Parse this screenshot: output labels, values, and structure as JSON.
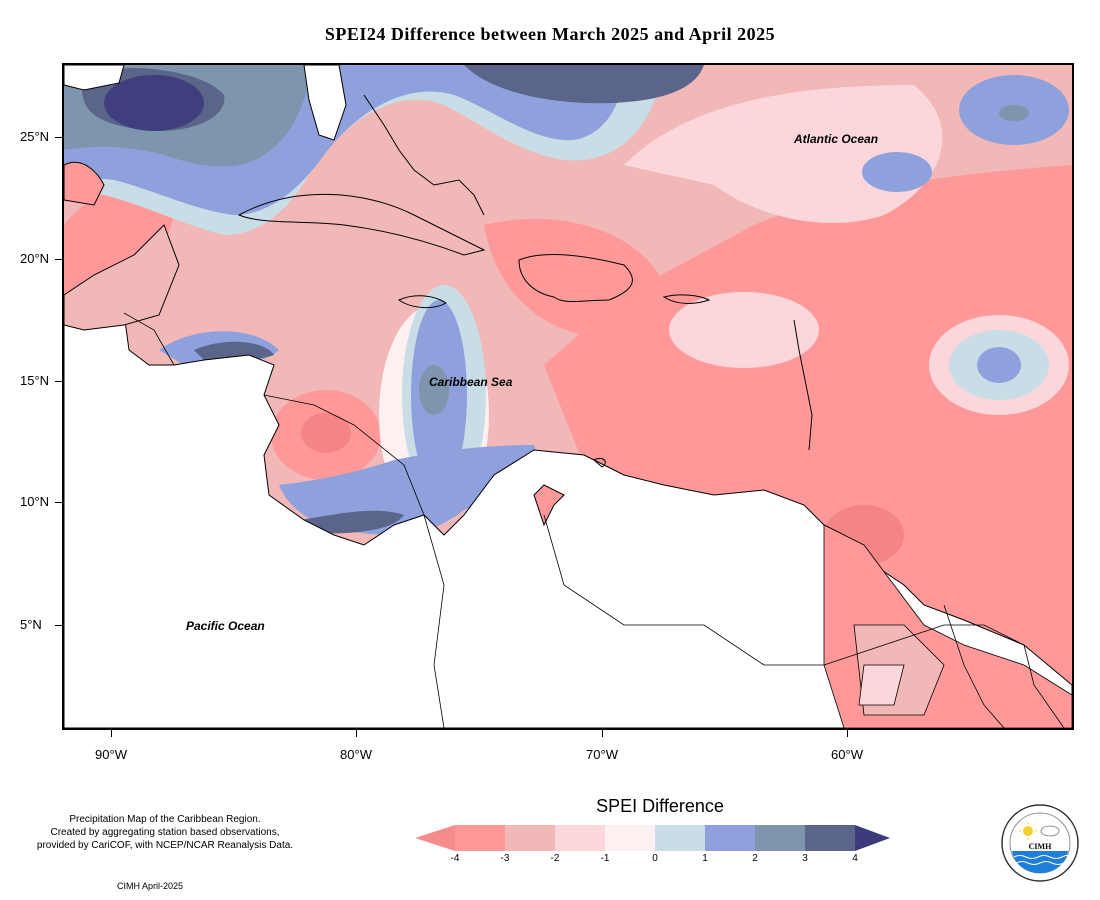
{
  "title": "SPEI24 Difference between March 2025 and April 2025",
  "labels": {
    "atlantic": "Atlantic Ocean",
    "caribbean": "Caribbean Sea",
    "pacific": "Pacific Ocean"
  },
  "lat_labels": [
    "25°N",
    "20°N",
    "15°N",
    "10°N",
    "5°N"
  ],
  "lon_labels": [
    "90°W",
    "80°W",
    "70°W",
    "60°W"
  ],
  "notes": {
    "line1": "Precipitation Map of the Caribbean Region.",
    "line2": "Created by aggregating station based observations,",
    "line3": "provided by CariCOF, with NCEP/NCAR Reanalysis Data.",
    "credit": "CIMH April-2025"
  },
  "legend": {
    "title": "SPEI Difference",
    "ticks": [
      "-4",
      "-3",
      "-2",
      "-1",
      "0",
      "1",
      "2",
      "3",
      "4"
    ],
    "colors": [
      "#ff9999",
      "#f2b8b8",
      "#fbd7dc",
      "#fdf0f0",
      "#c9dde6",
      "#8ea1dd",
      "#7d95ad",
      "#5a6589",
      "#3f3f7e"
    ],
    "under_color": "#f58b8b",
    "over_color": "#3c3a78"
  },
  "logo": {
    "text": "CIMH",
    "icon": "sun-cloud-waves-icon"
  }
}
